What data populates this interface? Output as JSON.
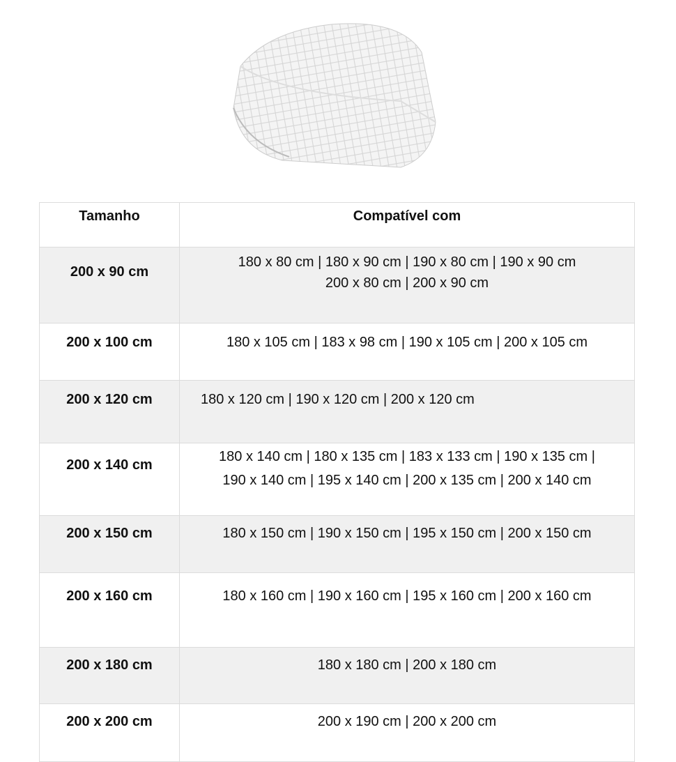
{
  "product_image": {
    "alt": "quilted white mattress protector"
  },
  "table": {
    "headers": [
      "Tamanho",
      "Compatível com"
    ],
    "rows": [
      {
        "size": "200 x 90 cm",
        "compat": [
          "180 x 80 cm | 180 x 90 cm | 190 x 80 cm | 190 x 90 cm",
          "200 x 80 cm | 200 x 90 cm"
        ]
      },
      {
        "size": "200 x 100 cm",
        "compat": [
          "180 x 105 cm | 183 x 98 cm | 190 x 105 cm | 200 x 105 cm"
        ]
      },
      {
        "size": "200 x 120 cm",
        "compat": [
          "180 x 120 cm | 190 x 120 cm | 200 x 120 cm"
        ]
      },
      {
        "size": "200 x 140 cm",
        "compat": [
          "180 x 140 cm | 180 x 135 cm | 183 x 133 cm | 190 x 135 cm |",
          "190 x 140 cm | 195 x 140 cm | 200 x 135 cm | 200 x 140 cm"
        ]
      },
      {
        "size": "200 x 150 cm",
        "compat": [
          "180 x 150 cm | 190 x 150 cm | 195 x 150 cm | 200 x 150 cm"
        ]
      },
      {
        "size": "200 x 160 cm",
        "compat": [
          "180 x 160 cm | 190 x 160 cm | 195 x 160 cm | 200 x 160 cm"
        ]
      },
      {
        "size": "200 x 180 cm",
        "compat": [
          "180 x 180 cm | 200 x 180 cm"
        ]
      },
      {
        "size": "200 x 200 cm",
        "compat": [
          "200 x 190 cm | 200 x 200 cm"
        ]
      }
    ]
  },
  "colors": {
    "row_shade": "#f0f0f0",
    "border": "#dcdcdc"
  }
}
